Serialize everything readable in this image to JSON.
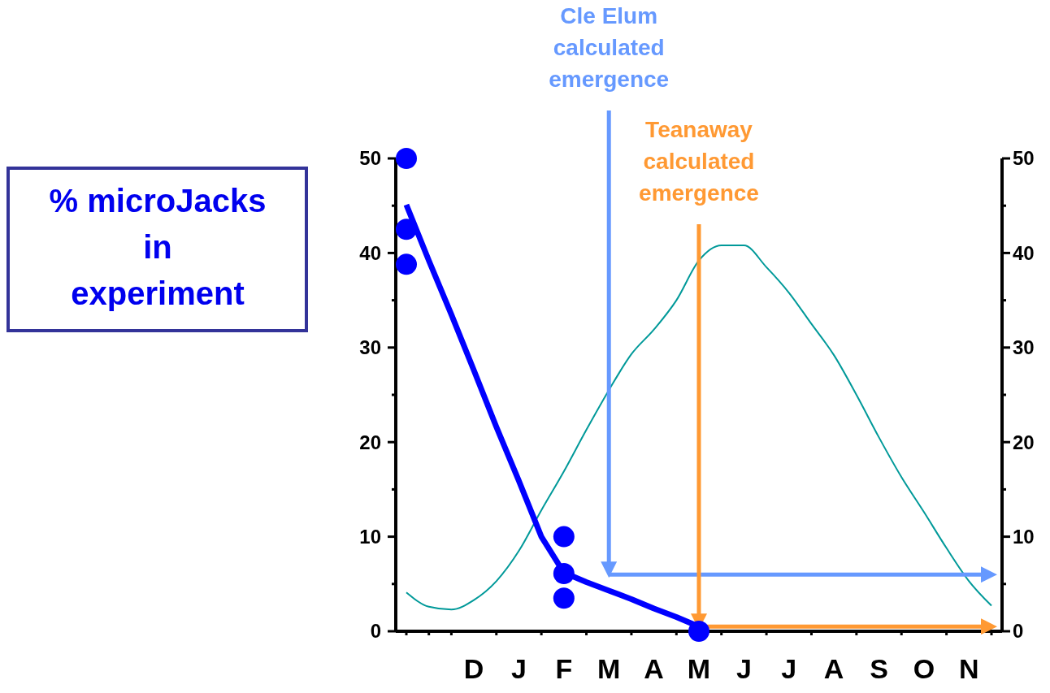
{
  "chart_data": {
    "type": "scatter",
    "ylabel": "% microJacks in experiment",
    "categories": [
      null,
      null,
      null,
      "D",
      null,
      "J",
      null,
      "F",
      null,
      "M",
      null,
      "A",
      null,
      "M",
      null,
      "J",
      null,
      "J",
      null,
      "A",
      null,
      "S",
      null,
      "O",
      null,
      "N",
      null
    ],
    "ylim": [
      0,
      50
    ],
    "yticks": [
      0,
      {
        "value": 5,
        "label": null
      },
      10,
      {
        "value": 15,
        "label": null
      },
      20,
      {
        "value": 25,
        "label": null
      },
      30,
      {
        "value": 35,
        "label": null
      },
      40,
      {
        "value": 45,
        "label": null
      },
      50
    ],
    "y2lim": [
      0,
      50
    ],
    "y2ticks": [
      0,
      {
        "value": 5,
        "label": null
      },
      10,
      {
        "value": 15,
        "label": null
      },
      20,
      {
        "value": 25,
        "label": null
      },
      30,
      {
        "value": 35,
        "label": null
      },
      40,
      {
        "value": 45,
        "label": null
      },
      50
    ],
    "grid": false,
    "series": [
      {
        "type": "line",
        "axis": "y2",
        "color": "#009999",
        "marker": "none",
        "values": [
          4.1,
          2.6,
          2.3,
          3.3,
          5.3,
          8.5,
          12.8,
          16.9,
          21.3,
          25.5,
          29.3,
          31.9,
          35.0,
          39.2,
          40.8,
          40.8,
          38.5,
          35.8,
          32.5,
          29.2,
          25.0,
          20.5,
          16.3,
          12.6,
          8.8,
          5.3,
          2.7
        ]
      },
      {
        "type": "line",
        "color": "#0000ff",
        "marker": "none",
        "values": [
          45.1,
          39.2,
          33.5,
          27.6,
          21.6,
          15.9,
          10.0,
          6.2,
          5.2,
          4.3,
          3.4,
          2.4,
          1.5,
          0.5,
          null,
          null,
          null,
          null,
          null,
          null,
          null,
          null,
          null,
          null,
          null,
          null,
          null
        ]
      },
      {
        "color": "#0000ff",
        "marker": "circle",
        "values": [
          50,
          null,
          null,
          null,
          null,
          null,
          null,
          10.0,
          null,
          null,
          null,
          null,
          null,
          0,
          null,
          null,
          null,
          null,
          null,
          null,
          null,
          null,
          null,
          null,
          null,
          null,
          null
        ]
      },
      {
        "color": "#0000ff",
        "marker": "circle",
        "values": [
          42.5,
          null,
          null,
          null,
          null,
          null,
          null,
          6.1,
          null,
          null,
          null,
          null,
          null,
          null,
          null,
          null,
          null,
          null,
          null,
          null,
          null,
          null,
          null,
          null,
          null,
          null,
          null
        ]
      },
      {
        "color": "#0000ff",
        "marker": "circle",
        "values": [
          38.8,
          null,
          null,
          null,
          null,
          null,
          null,
          3.5,
          null,
          null,
          null,
          null,
          null,
          null,
          null,
          null,
          null,
          null,
          null,
          null,
          null,
          null,
          null,
          null,
          null,
          null,
          null
        ]
      }
    ],
    "ref_lines": [
      {
        "axis": "x",
        "value": "M",
        "label": "Cle Elum calculated emergence",
        "color": "#6699ff"
      },
      {
        "axis": "y",
        "value": 6,
        "color": "#6699ff"
      },
      {
        "axis": "y",
        "value": 0.5,
        "color": "#ff9933"
      }
    ],
    "annotations": [
      "Teanaway calculated emergence"
    ]
  }
}
